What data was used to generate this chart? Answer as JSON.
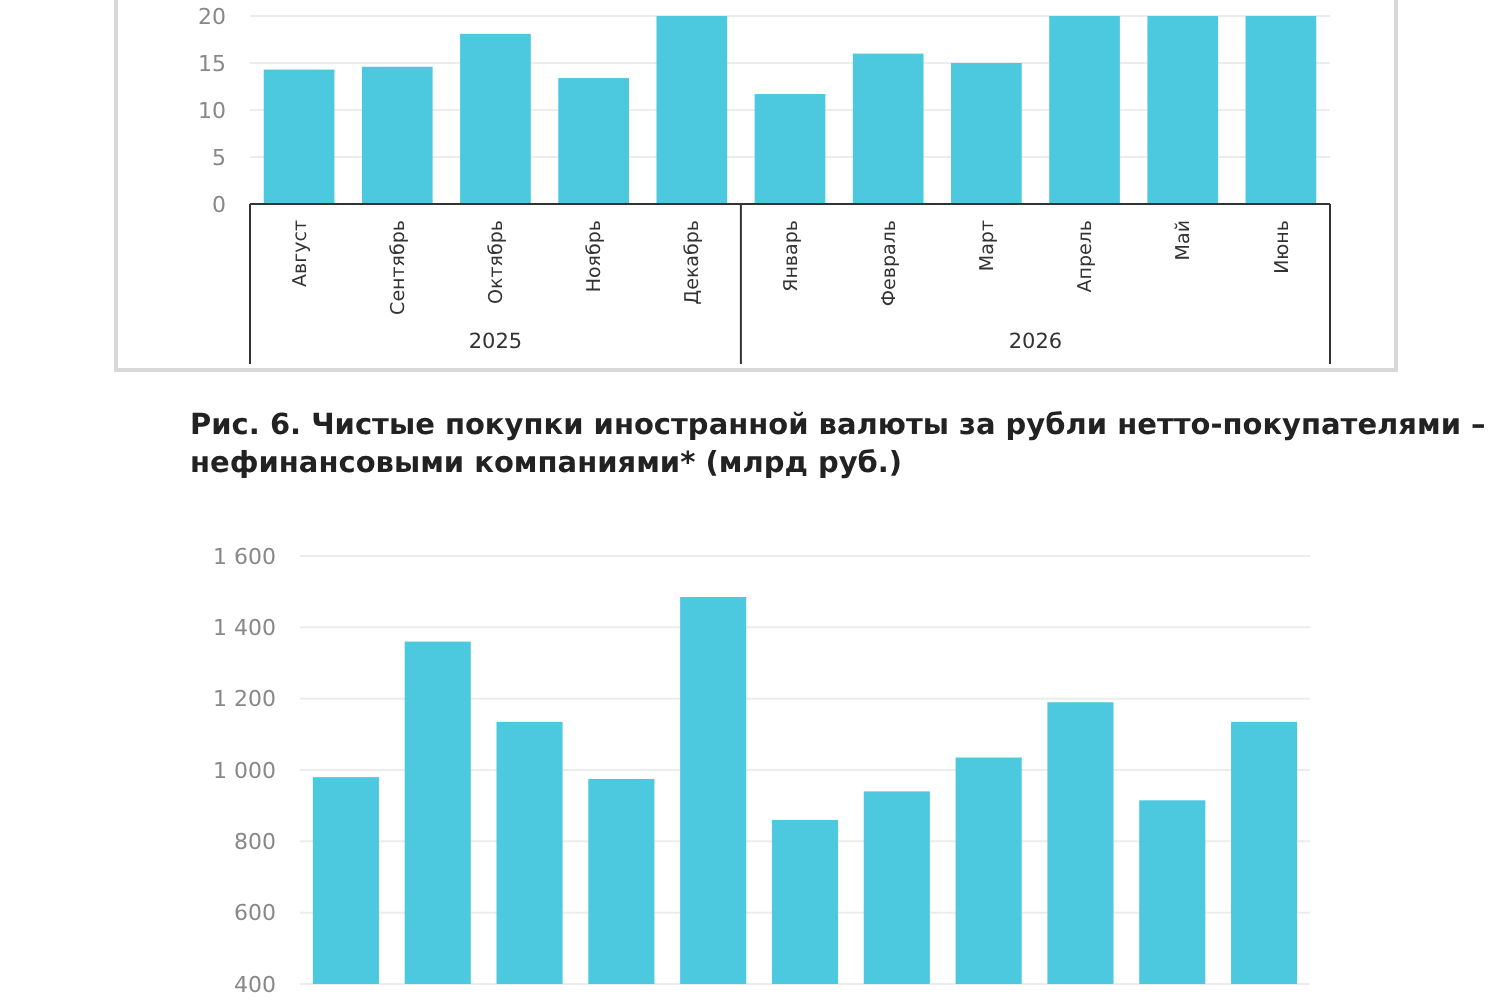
{
  "chart_data": [
    {
      "type": "bar",
      "categories": [
        "Август",
        "Сентябрь",
        "Октябрь",
        "Ноябрь",
        "Декабрь",
        "Январь",
        "Февраль",
        "Март",
        "Апрель",
        "Май",
        "Июнь"
      ],
      "values": [
        14.3,
        14.6,
        18.1,
        13.4,
        20,
        11.7,
        16.0,
        15.0,
        20,
        20,
        20
      ],
      "color": "#4dc9df",
      "ylim": [
        0,
        20
      ],
      "yticks": [
        0,
        5,
        10,
        15,
        20
      ],
      "grid": "y",
      "annotations": [
        "2025",
        "2026"
      ]
    },
    {
      "type": "bar",
      "title": "Рис. 6. Чистые покупки иностранной валюты за рубли нетто-покупателями – нефинансовыми компаниями* (млрд руб.)",
      "categories": [
        null,
        null,
        null,
        null,
        null,
        null,
        null,
        null,
        null,
        null,
        null
      ],
      "values": [
        980,
        1360,
        1135,
        975,
        1485,
        860,
        940,
        1035,
        1190,
        915,
        1135
      ],
      "color": "#4dc9df",
      "ylim": [
        400,
        1600
      ],
      "yticks": [
        {
          "value": 400,
          "label": "400"
        },
        {
          "value": 600,
          "label": "600"
        },
        {
          "value": 800,
          "label": "800"
        },
        {
          "value": 1000,
          "label": "1 000"
        },
        {
          "value": 1200,
          "label": "1 200"
        },
        {
          "value": 1400,
          "label": "1 400"
        },
        {
          "value": 1600,
          "label": "1 600"
        }
      ],
      "grid": "y",
      "tick_labels": "y"
    }
  ]
}
